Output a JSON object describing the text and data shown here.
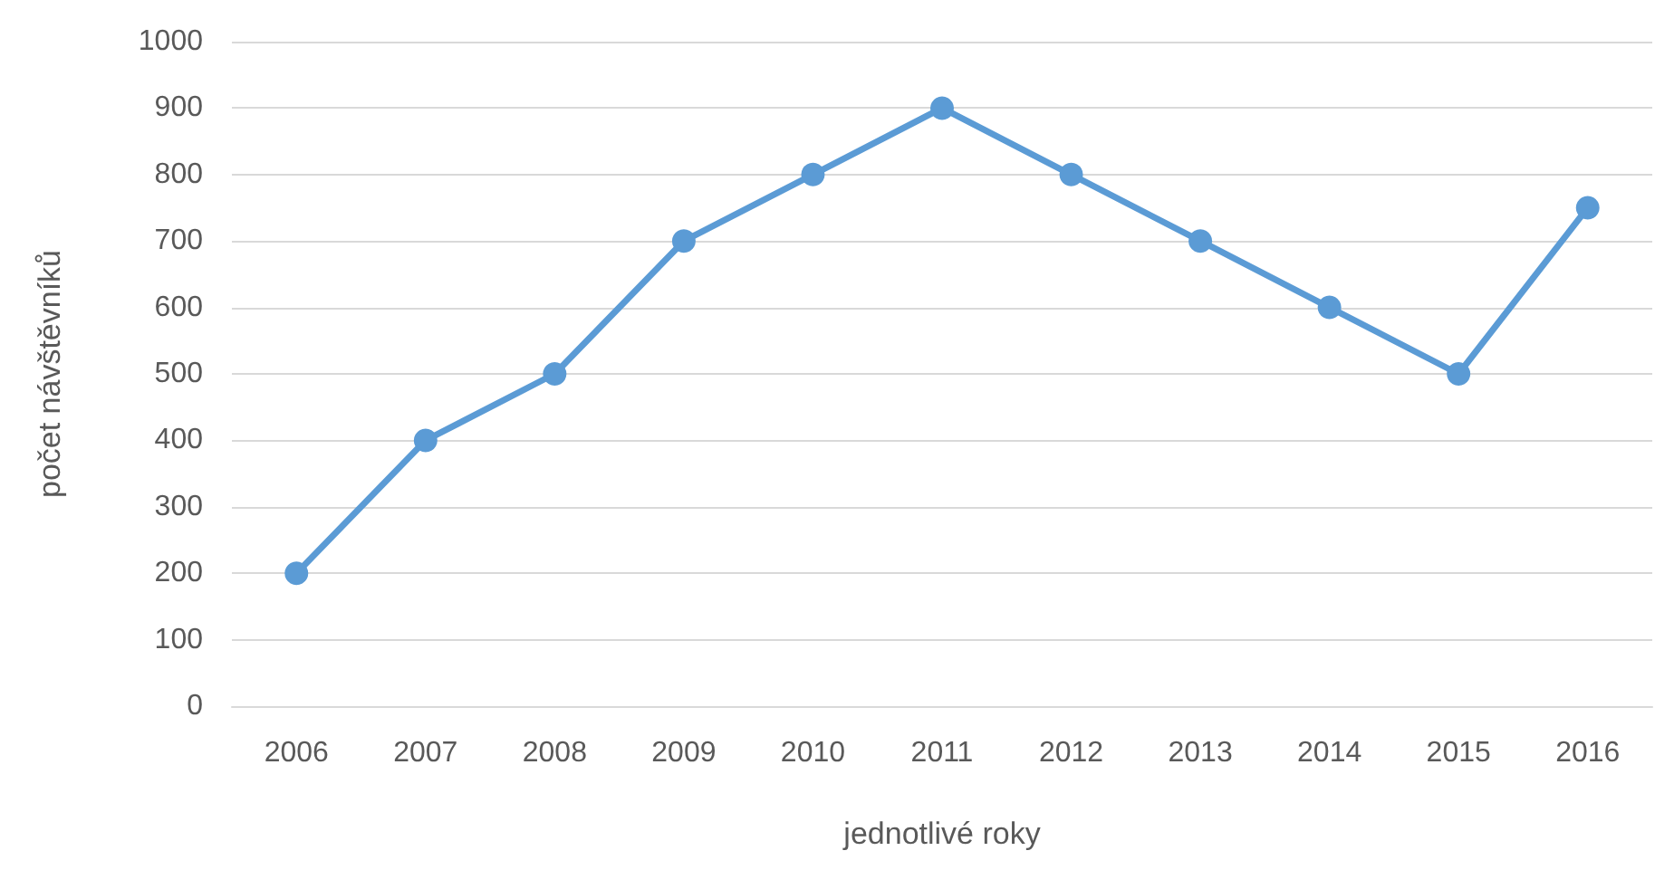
{
  "chart_data": {
    "type": "line",
    "xlabel": "jednotlivé roky",
    "ylabel": "počet návštěvníků",
    "categories": [
      "2006",
      "2007",
      "2008",
      "2009",
      "2010",
      "2011",
      "2012",
      "2013",
      "2014",
      "2015",
      "2016"
    ],
    "series": [
      {
        "color": "#5b9bd5",
        "values": [
          200,
          400,
          500,
          700,
          800,
          900,
          800,
          700,
          600,
          500,
          750
        ]
      }
    ],
    "ylim": [
      0,
      1000
    ],
    "yticks": [
      0,
      100,
      200,
      300,
      400,
      500,
      600,
      700,
      800,
      900,
      1000
    ],
    "grid": "y",
    "marker": "circle",
    "line_style": "solid"
  }
}
